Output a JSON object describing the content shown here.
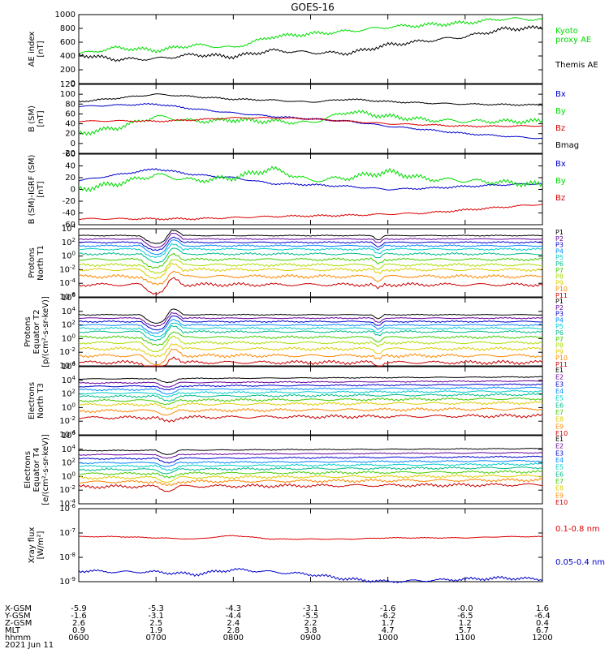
{
  "title": "GOES-16",
  "colors": {
    "black": "#000000",
    "green": "#00dd00",
    "blue": "#0000cc",
    "red": "#dd0000"
  },
  "date_label": "2021 Jun 11",
  "footer": {
    "row_labels": [
      "X-GSM",
      "Y-GSM",
      "Z-GSM",
      "MLT",
      "hhmm"
    ],
    "columns": [
      [
        "-5.9",
        "-1.6",
        "2.6",
        "0.9",
        "0600"
      ],
      [
        "-5.3",
        "-3.1",
        "2.5",
        "1.9",
        "0700"
      ],
      [
        "-4.3",
        "-4.4",
        "2.4",
        "2.8",
        "0800"
      ],
      [
        "-3.1",
        "-5.5",
        "2.2",
        "3.8",
        "0900"
      ],
      [
        "-1.6",
        "-6.2",
        "1.7",
        "4.7",
        "1000"
      ],
      [
        "-0.0",
        "-6.5",
        "1.2",
        "5.7",
        "1100"
      ],
      [
        "1.6",
        "-6.4",
        "0.4",
        "6.7",
        "1200"
      ]
    ]
  },
  "chart_data": [
    {
      "type": "line",
      "id": "ae",
      "ylabel": [
        "AE index",
        "[nT]"
      ],
      "yticks": [
        "1000",
        "800",
        "600",
        "400",
        "200",
        "0"
      ],
      "legend": [
        {
          "text": "Kyoto",
          "color": "#00dd00"
        },
        {
          "text": "proxy AE",
          "color": "#00dd00"
        },
        {
          "text": "Themis AE",
          "color": "#000000"
        }
      ],
      "x_hours": [
        6,
        6.5,
        7,
        7.5,
        8,
        8.5,
        9,
        9.5,
        10,
        10.5,
        11,
        11.5,
        12
      ],
      "series": [
        {
          "name": "Kyoto proxy AE",
          "color": "#00dd00",
          "values": [
            430,
            520,
            480,
            560,
            520,
            680,
            720,
            760,
            820,
            850,
            880,
            940,
            930
          ]
        },
        {
          "name": "Themis AE",
          "color": "#000000",
          "values": [
            420,
            350,
            360,
            420,
            390,
            480,
            450,
            440,
            560,
            620,
            680,
            790,
            810
          ]
        }
      ]
    },
    {
      "type": "line",
      "id": "bsm",
      "ylabel": [
        "B (SM)",
        "[nT]"
      ],
      "yticks": [
        "120",
        "100",
        "80",
        "60",
        "40",
        "20",
        "0",
        "-20"
      ],
      "legend": [
        {
          "text": "Bx",
          "color": "#0000cc"
        },
        {
          "text": "By",
          "color": "#00dd00"
        },
        {
          "text": "Bz",
          "color": "#dd0000"
        },
        {
          "text": "Bmag",
          "color": "#000000"
        }
      ],
      "x_hours": [
        6,
        6.5,
        7,
        7.5,
        8,
        8.5,
        9,
        9.5,
        10,
        10.5,
        11,
        11.5,
        12
      ],
      "series": [
        {
          "name": "Bmag",
          "color": "#000000",
          "values": [
            85,
            92,
            100,
            95,
            90,
            88,
            84,
            90,
            85,
            82,
            80,
            79,
            78
          ]
        },
        {
          "name": "Bx",
          "color": "#0000cc",
          "values": [
            75,
            78,
            80,
            70,
            62,
            55,
            50,
            45,
            35,
            28,
            20,
            15,
            10
          ]
        },
        {
          "name": "By",
          "color": "#00dd00",
          "values": [
            20,
            32,
            55,
            45,
            48,
            45,
            42,
            65,
            55,
            48,
            45,
            45,
            45
          ]
        },
        {
          "name": "Bz",
          "color": "#dd0000",
          "values": [
            45,
            46,
            45,
            48,
            52,
            52,
            50,
            45,
            40,
            38,
            35,
            35,
            36
          ]
        }
      ]
    },
    {
      "type": "line",
      "id": "bigrf",
      "ylabel": [
        "B (SM)-IGRF (SM)",
        "[nT]"
      ],
      "yticks": [
        "60",
        "40",
        "20",
        "0",
        "-20",
        "-40",
        "-60"
      ],
      "legend": [
        {
          "text": "Bx",
          "color": "#0000cc"
        },
        {
          "text": "By",
          "color": "#00dd00"
        },
        {
          "text": "Bz",
          "color": "#dd0000"
        }
      ],
      "x_hours": [
        6,
        6.5,
        7,
        7.5,
        8,
        8.5,
        9,
        9.5,
        10,
        10.5,
        11,
        11.5,
        12
      ],
      "series": [
        {
          "name": "Bx",
          "color": "#0000cc",
          "values": [
            15,
            25,
            35,
            25,
            20,
            10,
            8,
            5,
            0,
            2,
            5,
            8,
            10
          ]
        },
        {
          "name": "By",
          "color": "#00dd00",
          "values": [
            0,
            10,
            25,
            15,
            20,
            35,
            15,
            20,
            30,
            18,
            15,
            12,
            8
          ]
        },
        {
          "name": "Bz",
          "color": "#dd0000",
          "values": [
            -50,
            -50,
            -50,
            -50,
            -48,
            -46,
            -45,
            -44,
            -42,
            -40,
            -35,
            -30,
            -25
          ]
        }
      ]
    },
    {
      "type": "line",
      "id": "prot_n",
      "ylabel": [
        "Protons",
        "North T1"
      ],
      "yticks": [
        "10^4",
        "10^2",
        "10^0",
        "10^-2",
        "10^-4",
        "10^-6"
      ],
      "legend": [
        {
          "text": "P1",
          "color": "#000000"
        },
        {
          "text": "P2",
          "color": "#660099"
        },
        {
          "text": "P3",
          "color": "#0000cc"
        },
        {
          "text": "P4",
          "color": "#0088ff"
        },
        {
          "text": "P5",
          "color": "#00cccc"
        },
        {
          "text": "P6",
          "color": "#00bb88"
        },
        {
          "text": "P7",
          "color": "#44cc00"
        },
        {
          "text": "P8",
          "color": "#aadd00"
        },
        {
          "text": "P9",
          "color": "#ddcc00"
        },
        {
          "text": "P10",
          "color": "#ff8800"
        },
        {
          "text": "P11",
          "color": "#cc0000"
        }
      ],
      "x_hours": [
        6,
        6.5,
        7,
        7.5,
        8,
        8.5,
        9,
        9.5,
        10,
        10.5,
        11,
        11.5,
        12
      ],
      "levels_log": [
        3.0,
        2.5,
        2.0,
        1.5,
        1.0,
        0.3,
        -0.5,
        -1.3,
        -2.0,
        -3.0,
        -4.2
      ]
    },
    {
      "type": "line",
      "id": "prot_e",
      "ylabel": [
        "Protons",
        "Equator T2",
        "[p/(cm²-s-sr-keV)]"
      ],
      "yticks": [
        "10^6",
        "10^4",
        "10^2",
        "10^0",
        "10^-2",
        "10^-4"
      ],
      "legend": [
        {
          "text": "P1",
          "color": "#000000"
        },
        {
          "text": "P2",
          "color": "#660099"
        },
        {
          "text": "P3",
          "color": "#0000cc"
        },
        {
          "text": "P4",
          "color": "#0088ff"
        },
        {
          "text": "P5",
          "color": "#00cccc"
        },
        {
          "text": "P6",
          "color": "#00bb88"
        },
        {
          "text": "P7",
          "color": "#44cc00"
        },
        {
          "text": "P8",
          "color": "#aadd00"
        },
        {
          "text": "P9",
          "color": "#ddcc00"
        },
        {
          "text": "P10",
          "color": "#ff8800"
        },
        {
          "text": "P11",
          "color": "#cc0000"
        }
      ],
      "x_hours": [
        6,
        6.5,
        7,
        7.5,
        8,
        8.5,
        9,
        9.5,
        10,
        10.5,
        11,
        11.5,
        12
      ],
      "levels_log": [
        3.5,
        3.0,
        2.5,
        2.0,
        1.5,
        1.0,
        0.2,
        -0.6,
        -1.5,
        -2.5,
        -3.5
      ]
    },
    {
      "type": "line",
      "id": "elec_n",
      "ylabel": [
        "Electrons",
        "North T3"
      ],
      "yticks": [
        "10^6",
        "10^4",
        "10^2",
        "10^0",
        "10^-2",
        "10^-4"
      ],
      "legend": [
        {
          "text": "E1",
          "color": "#000000"
        },
        {
          "text": "E2",
          "color": "#660099"
        },
        {
          "text": "E3",
          "color": "#0000cc"
        },
        {
          "text": "E4",
          "color": "#0088ff"
        },
        {
          "text": "E5",
          "color": "#00cccc"
        },
        {
          "text": "E6",
          "color": "#00bb88"
        },
        {
          "text": "E7",
          "color": "#44cc00"
        },
        {
          "text": "E8",
          "color": "#ddcc00"
        },
        {
          "text": "E9",
          "color": "#ff8800"
        },
        {
          "text": "E10",
          "color": "#cc0000"
        }
      ],
      "x_hours": [
        6,
        6.5,
        7,
        7.5,
        8,
        8.5,
        9,
        9.5,
        10,
        10.5,
        11,
        11.5,
        12
      ],
      "levels_log": [
        4.2,
        3.6,
        3.1,
        2.6,
        2.1,
        1.6,
        1.0,
        0.4,
        -0.5,
        -1.5
      ]
    },
    {
      "type": "line",
      "id": "elec_e",
      "ylabel": [
        "Electrons",
        "Equator T4",
        "[e/(cm²-s-sr-keV)]"
      ],
      "yticks": [
        "10^6",
        "10^4",
        "10^2",
        "10^0",
        "10^-2",
        "10^-4"
      ],
      "legend": [
        {
          "text": "E1",
          "color": "#000000"
        },
        {
          "text": "E2",
          "color": "#660099"
        },
        {
          "text": "E3",
          "color": "#0000cc"
        },
        {
          "text": "E4",
          "color": "#0088ff"
        },
        {
          "text": "E5",
          "color": "#00cccc"
        },
        {
          "text": "E6",
          "color": "#00bb88"
        },
        {
          "text": "E7",
          "color": "#44cc00"
        },
        {
          "text": "E8",
          "color": "#ddcc00"
        },
        {
          "text": "E9",
          "color": "#ff8800"
        },
        {
          "text": "E10",
          "color": "#cc0000"
        }
      ],
      "x_hours": [
        6,
        6.5,
        7,
        7.5,
        8,
        8.5,
        9,
        9.5,
        10,
        10.5,
        11,
        11.5,
        12
      ],
      "levels_log": [
        3.8,
        3.2,
        2.6,
        2.0,
        1.5,
        1.0,
        0.4,
        -0.2,
        -0.8,
        -1.5
      ]
    },
    {
      "type": "line",
      "id": "xray",
      "ylabel": [
        "Xray flux",
        "[W/m²]"
      ],
      "yticks": [
        "10^-6",
        "10^-7",
        "10^-8",
        "10^-9"
      ],
      "legend": [
        {
          "text": "0.1-0.8 nm",
          "color": "#dd0000"
        },
        {
          "text": "0.05-0.4 nm",
          "color": "#0000cc"
        }
      ],
      "x_hours": [
        6,
        6.5,
        7,
        7.5,
        8,
        8.5,
        9,
        9.5,
        10,
        10.5,
        11,
        11.5,
        12
      ],
      "series": [
        {
          "name": "0.1-0.8 nm",
          "color": "#dd0000",
          "values": [
            -7.15,
            -7.15,
            -7.2,
            -7.25,
            -7.1,
            -7.25,
            -7.25,
            -7.25,
            -7.2,
            -7.2,
            -7.2,
            -7.15,
            -7.15
          ]
        },
        {
          "name": "0.05-0.4 nm",
          "color": "#0000cc",
          "values": [
            -8.55,
            -8.6,
            -8.6,
            -8.7,
            -8.5,
            -8.6,
            -8.7,
            -8.9,
            -9.0,
            -8.95,
            -8.9,
            -8.85,
            -8.9
          ]
        }
      ]
    }
  ]
}
